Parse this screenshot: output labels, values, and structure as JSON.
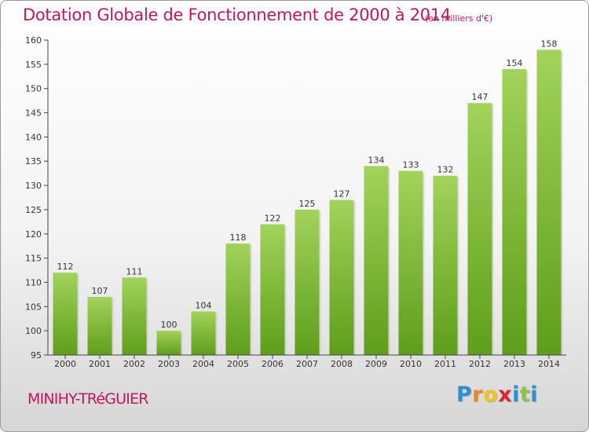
{
  "header": {
    "title": "Dotation Globale de Fonctionnement de 2000 à 2014",
    "subtitle": "(en milliers d'€)"
  },
  "footer": {
    "commune": "MINIHY-TRéGUIER",
    "logo_letters": [
      "P",
      "r",
      "o",
      "x",
      "i",
      "t",
      "i"
    ],
    "logo_colors": [
      "#2f8fd6",
      "#e8861e",
      "#f2c318",
      "#d9272e",
      "#2f8fd6",
      "#8cc63f",
      "#2f8fd6"
    ]
  },
  "chart_data": {
    "type": "bar",
    "categories": [
      "2000",
      "2001",
      "2002",
      "2003",
      "2004",
      "2005",
      "2006",
      "2007",
      "2008",
      "2009",
      "2010",
      "2011",
      "2012",
      "2013",
      "2014"
    ],
    "values": [
      112,
      107,
      111,
      100,
      104,
      118,
      122,
      125,
      127,
      134,
      133,
      132,
      147,
      154,
      158
    ],
    "ylim": [
      95,
      160
    ],
    "yticks": [
      95,
      100,
      105,
      110,
      115,
      120,
      125,
      130,
      135,
      140,
      145,
      150,
      155,
      160
    ],
    "grid": false,
    "bar_color": "#7cc23a",
    "title": "Dotation Globale de Fonctionnement de 2000 à 2014"
  }
}
